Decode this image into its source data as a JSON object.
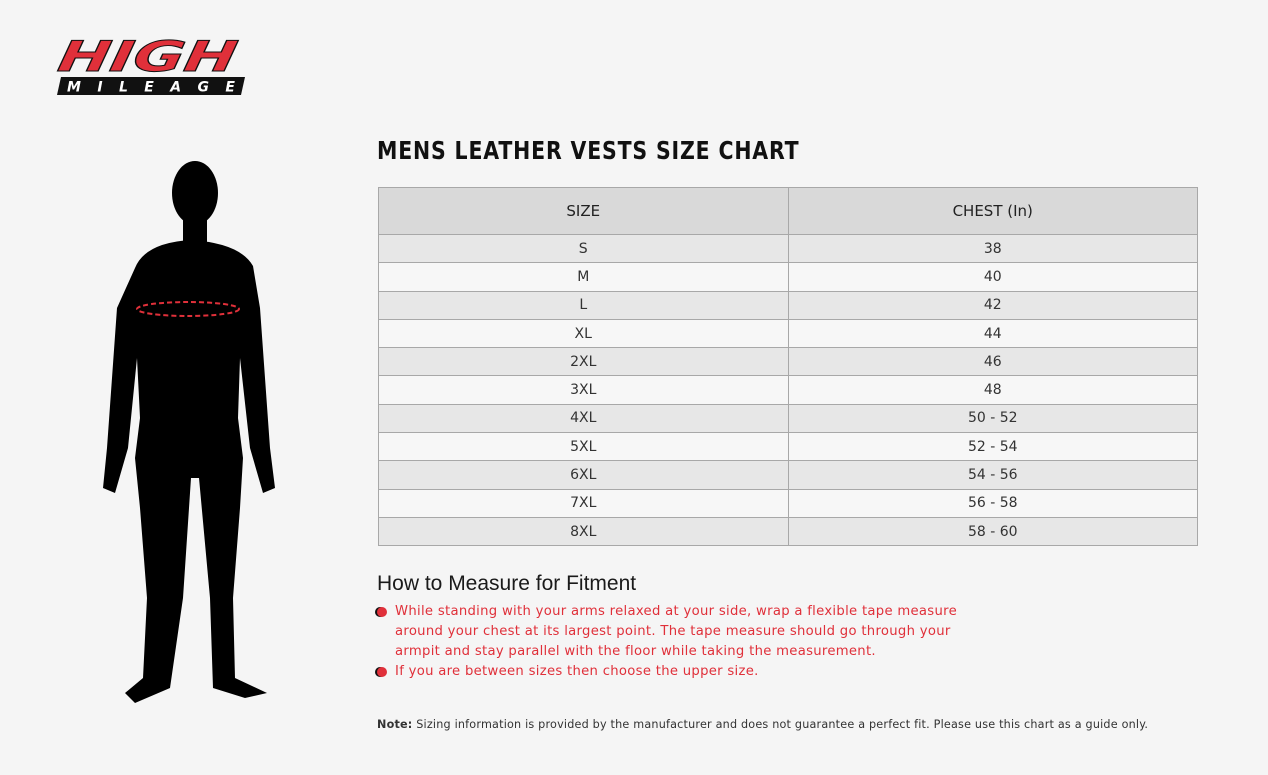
{
  "brand": {
    "logo_text_top": "HIGH",
    "logo_text_bottom": "MILEAGE",
    "accent": "#e0303a"
  },
  "title": "MENS LEATHER VESTS SIZE CHART",
  "table": {
    "headers": [
      "SIZE",
      "CHEST (In)"
    ],
    "rows": [
      [
        "S",
        "38"
      ],
      [
        "M",
        "40"
      ],
      [
        "L",
        "42"
      ],
      [
        "XL",
        "44"
      ],
      [
        "2XL",
        "46"
      ],
      [
        "3XL",
        "48"
      ],
      [
        "4XL",
        "50 - 52"
      ],
      [
        "5XL",
        "52 - 54"
      ],
      [
        "6XL",
        "54 - 56"
      ],
      [
        "7XL",
        "56 - 58"
      ],
      [
        "8XL",
        "58 - 60"
      ]
    ]
  },
  "howto": {
    "heading": "How to Measure for Fitment",
    "bullets": [
      "While standing with your arms relaxed at your side, wrap a flexible tape measure around your chest at its largest point. The tape measure should go through your armpit and stay parallel with the floor while taking the measurement.",
      "If you are between sizes then choose the upper size."
    ]
  },
  "note": {
    "label": "Note:",
    "text": " Sizing information is provided by the manufacturer and does not guarantee a perfect fit. Please use this chart as a guide only."
  }
}
